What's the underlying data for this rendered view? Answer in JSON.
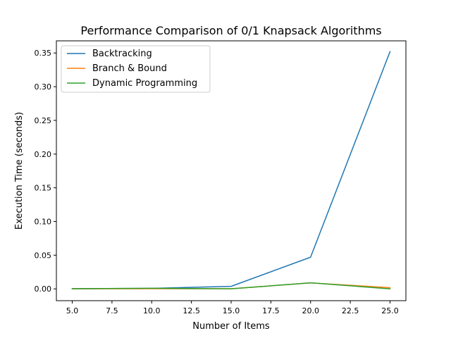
{
  "chart_data": {
    "type": "line",
    "title": "Performance Comparison of 0/1 Knapsack Algorithms",
    "xlabel": "Number of Items",
    "ylabel": "Execution Time (seconds)",
    "xlim": [
      4.0,
      26.0
    ],
    "ylim": [
      -0.0175,
      0.368
    ],
    "x_ticks": [
      5.0,
      7.5,
      10.0,
      12.5,
      15.0,
      17.5,
      20.0,
      22.5,
      25.0
    ],
    "x_tick_labels": [
      "5.0",
      "7.5",
      "10.0",
      "12.5",
      "15.0",
      "17.5",
      "20.0",
      "22.5",
      "25.0"
    ],
    "y_ticks": [
      0.0,
      0.05,
      0.1,
      0.15,
      0.2,
      0.25,
      0.3,
      0.35
    ],
    "y_tick_labels": [
      "0.00",
      "0.05",
      "0.10",
      "0.15",
      "0.20",
      "0.25",
      "0.30",
      "0.35"
    ],
    "grid": false,
    "legend_position": "top-left",
    "x": [
      5,
      10,
      15,
      20,
      25
    ],
    "series": [
      {
        "name": "Backtracking",
        "color": "#1f77b4",
        "values": [
          0.0002,
          0.0008,
          0.0038,
          0.047,
          0.352
        ]
      },
      {
        "name": "Branch & Bound",
        "color": "#ff7f0e",
        "values": [
          0.0001,
          0.0003,
          0.0002,
          0.0089,
          0.0018
        ]
      },
      {
        "name": "Dynamic Programming",
        "color": "#2ca02c",
        "values": [
          0.0003,
          0.0009,
          0.0001,
          0.009,
          0.0001
        ]
      }
    ]
  }
}
